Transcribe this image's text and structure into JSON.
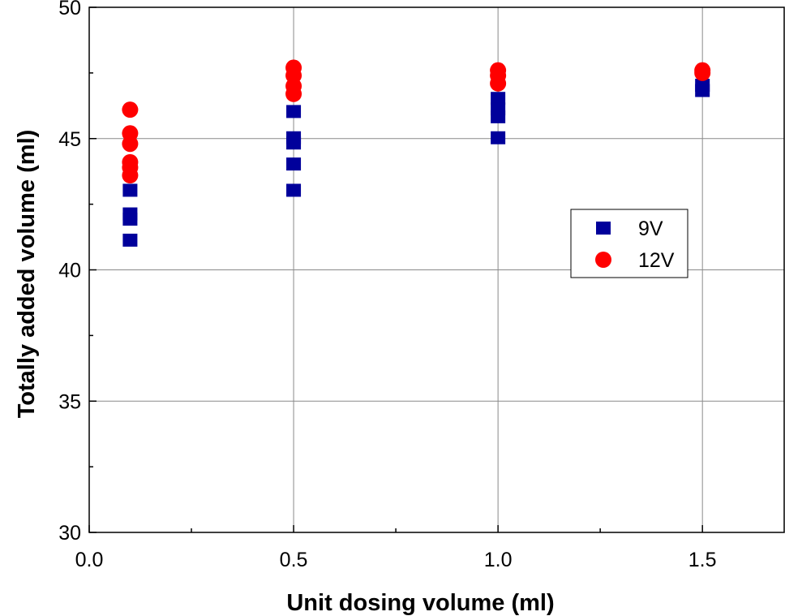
{
  "chart_data": {
    "type": "scatter",
    "xlabel": "Unit dosing volume (ml)",
    "ylabel": "Totally added volume (ml)",
    "xlim": [
      0.0,
      1.7
    ],
    "ylim": [
      30,
      50
    ],
    "x_ticks": [
      "0.0",
      "0.5",
      "1.0",
      "1.5"
    ],
    "y_ticks": [
      "30",
      "35",
      "40",
      "45",
      "50"
    ],
    "grid": true,
    "legend_position": "right",
    "series": [
      {
        "name": "9V",
        "marker": "square",
        "color": "#00009b",
        "points": [
          {
            "x": 0.1,
            "y": 43.0
          },
          {
            "x": 0.1,
            "y": 42.1
          },
          {
            "x": 0.1,
            "y": 41.9
          },
          {
            "x": 0.1,
            "y": 41.1
          },
          {
            "x": 0.5,
            "y": 46.0
          },
          {
            "x": 0.5,
            "y": 45.0
          },
          {
            "x": 0.5,
            "y": 44.8
          },
          {
            "x": 0.5,
            "y": 44.0
          },
          {
            "x": 0.5,
            "y": 43.0
          },
          {
            "x": 1.0,
            "y": 46.5
          },
          {
            "x": 1.0,
            "y": 46.1
          },
          {
            "x": 1.0,
            "y": 45.8
          },
          {
            "x": 1.0,
            "y": 45.0
          },
          {
            "x": 1.5,
            "y": 47.0
          },
          {
            "x": 1.5,
            "y": 46.8
          }
        ]
      },
      {
        "name": "12V",
        "marker": "circle",
        "color": "#ff0000",
        "points": [
          {
            "x": 0.1,
            "y": 46.1
          },
          {
            "x": 0.1,
            "y": 45.2
          },
          {
            "x": 0.1,
            "y": 44.8
          },
          {
            "x": 0.1,
            "y": 44.1
          },
          {
            "x": 0.1,
            "y": 43.9
          },
          {
            "x": 0.1,
            "y": 43.6
          },
          {
            "x": 0.5,
            "y": 47.7
          },
          {
            "x": 0.5,
            "y": 47.4
          },
          {
            "x": 0.5,
            "y": 47.0
          },
          {
            "x": 0.5,
            "y": 46.7
          },
          {
            "x": 1.0,
            "y": 47.6
          },
          {
            "x": 1.0,
            "y": 47.4
          },
          {
            "x": 1.0,
            "y": 47.1
          },
          {
            "x": 1.5,
            "y": 47.6
          },
          {
            "x": 1.5,
            "y": 47.5
          }
        ]
      }
    ]
  }
}
